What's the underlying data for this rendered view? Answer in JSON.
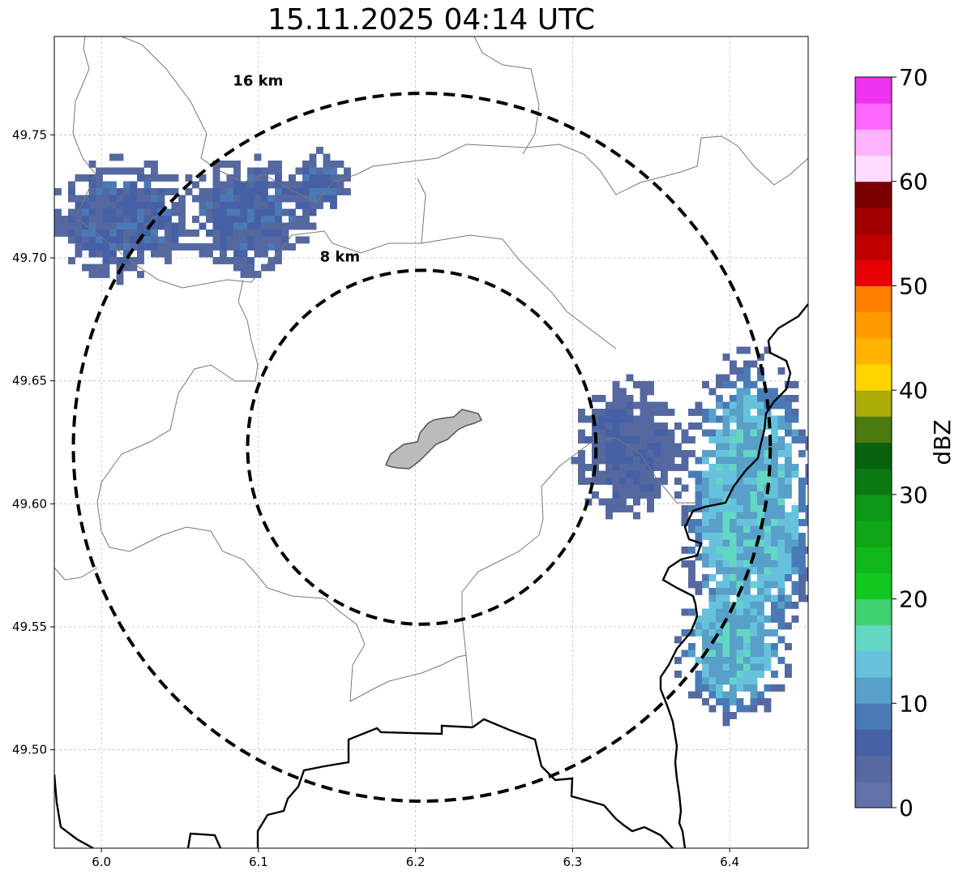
{
  "title": "15.11.2025 04:14 UTC",
  "map": {
    "xlim": [
      5.97,
      6.45
    ],
    "ylim": [
      49.46,
      49.79
    ],
    "x_ticks": [
      {
        "v": 6.0,
        "label": "6.0"
      },
      {
        "v": 6.1,
        "label": "6.1"
      },
      {
        "v": 6.2,
        "label": "6.2"
      },
      {
        "v": 6.3,
        "label": "6.3"
      },
      {
        "v": 6.4,
        "label": "6.4"
      }
    ],
    "y_ticks": [
      {
        "v": 49.5,
        "label": "49.50"
      },
      {
        "v": 49.55,
        "label": "49.55"
      },
      {
        "v": 49.6,
        "label": "49.60"
      },
      {
        "v": 49.65,
        "label": "49.65"
      },
      {
        "v": 49.7,
        "label": "49.70"
      },
      {
        "v": 49.75,
        "label": "49.75"
      }
    ],
    "grid": true,
    "center": {
      "lon": 6.204,
      "lat": 49.623
    },
    "range_rings": [
      {
        "radius_km": 8,
        "label": "8 km"
      },
      {
        "radius_km": 16,
        "label": "16 km"
      }
    ]
  },
  "colorbar": {
    "label": "dBZ",
    "min": 0,
    "max": 70,
    "tick_labels": [
      "0",
      "10",
      "20",
      "30",
      "40",
      "50",
      "60",
      "70"
    ],
    "colors": [
      "#6272a8",
      "#55689f",
      "#4660a5",
      "#4a7ab5",
      "#58a0c8",
      "#66c2dc",
      "#63d6c4",
      "#3dd26f",
      "#12c81e",
      "#10b71a",
      "#0fa718",
      "#0d9717",
      "#0a7a13",
      "#07610f",
      "#4a7a10",
      "#a8ac05",
      "#ffd500",
      "#ffb300",
      "#ff9900",
      "#ff7f00",
      "#e60000",
      "#c00000",
      "#a00000",
      "#7a0000",
      "#ffdcff",
      "#ffb3ff",
      "#ff66ff",
      "#ee33ee"
    ]
  }
}
